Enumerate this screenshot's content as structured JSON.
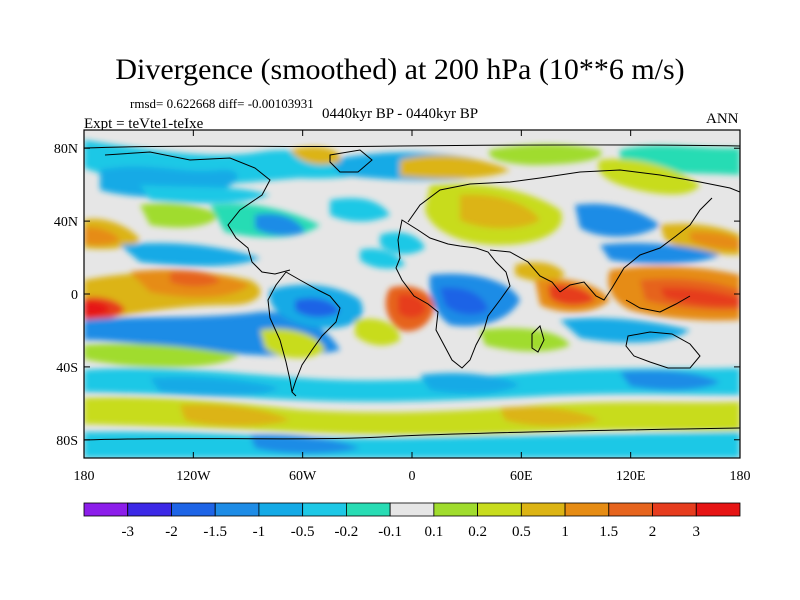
{
  "title": "Divergence (smoothed) at 200 hPa (10**6 m/s)",
  "stats": "rmsd= 0.622668 diff= -0.00103931",
  "period": "0440kyr BP - 0440kyr BP",
  "experiment": "Expt = teVte1-teIxe",
  "season": "ANN",
  "map": {
    "lat_ticks": [
      "80N",
      "40N",
      "0",
      "40S",
      "80S"
    ],
    "lon_ticks": [
      "180",
      "120W",
      "60W",
      "0",
      "60E",
      "120E",
      "180"
    ],
    "field_palette": [
      "#ffffff",
      "#e6e6e6",
      "#fcf06f"
    ]
  },
  "colorbar": {
    "labels": [
      "-3",
      "-2",
      "-1.5",
      "-1",
      "-0.5",
      "-0.2",
      "-0.1",
      "0.1",
      "0.2",
      "0.5",
      "1",
      "1.5",
      "2",
      "3"
    ],
    "colors": [
      "#8c1eea",
      "#3c28e6",
      "#1e64e6",
      "#1e8ce6",
      "#14aae6",
      "#1ec8e6",
      "#28dcb4",
      "#e6e6e6",
      "#a0dc2d",
      "#c8dc1e",
      "#dcb414",
      "#e68c14",
      "#e6641e",
      "#e63c1e",
      "#e61414"
    ]
  }
}
